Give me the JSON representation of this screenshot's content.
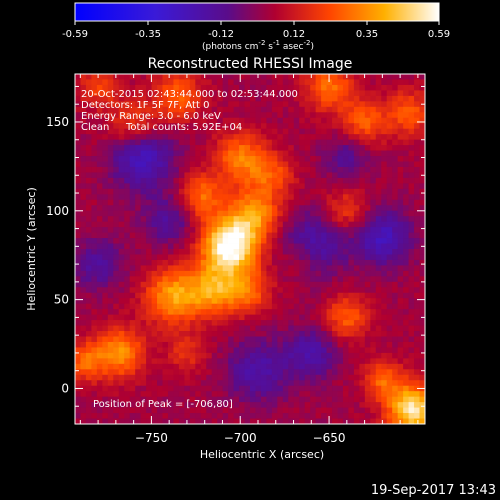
{
  "colorbar": {
    "ticks": [
      "-0.59",
      "-0.35",
      "-0.12",
      "0.12",
      "0.35",
      "0.59"
    ],
    "units_main": "(photons cm",
    "units_exp1": "-2",
    "units_mid": " s",
    "units_exp2": "-1",
    "units_end": " asec",
    "units_exp3": "-2",
    "units_close": ")",
    "min": -0.59,
    "max": 0.59
  },
  "chart_data": {
    "type": "heatmap",
    "title": "Reconstructed RHESSI Image",
    "xlabel": "Heliocentric X (arcsec)",
    "ylabel": "Heliocentric Y (arcsec)",
    "xlim": [
      -793,
      -596
    ],
    "ylim": [
      -20,
      177
    ],
    "xticks": [
      -750,
      -700,
      -650
    ],
    "xtick_labels": [
      "−750",
      "−700",
      "−650"
    ],
    "yticks": [
      0,
      50,
      100,
      150
    ],
    "ytick_labels": [
      "0",
      "50",
      "100",
      "150"
    ],
    "colormap": "blue-purple-red-yellow-white",
    "value_range": [
      -0.59,
      0.59
    ],
    "peak": [
      -706,
      80
    ],
    "sources": [
      {
        "x": -706,
        "y": 80,
        "amp": 1.0,
        "sigma": 11
      },
      {
        "x": -692,
        "y": 98,
        "amp": 0.55,
        "sigma": 10
      },
      {
        "x": -722,
        "y": 108,
        "amp": 0.45,
        "sigma": 9
      },
      {
        "x": -700,
        "y": 130,
        "amp": 0.5,
        "sigma": 10
      },
      {
        "x": -682,
        "y": 120,
        "amp": 0.35,
        "sigma": 9
      },
      {
        "x": -738,
        "y": 52,
        "amp": 0.6,
        "sigma": 11
      },
      {
        "x": -715,
        "y": 55,
        "amp": 0.55,
        "sigma": 10
      },
      {
        "x": -695,
        "y": 55,
        "amp": 0.4,
        "sigma": 9
      },
      {
        "x": -768,
        "y": 20,
        "amp": 0.55,
        "sigma": 10
      },
      {
        "x": -788,
        "y": 15,
        "amp": 0.4,
        "sigma": 8
      },
      {
        "x": -735,
        "y": 165,
        "amp": 0.4,
        "sigma": 10
      },
      {
        "x": -760,
        "y": 148,
        "amp": 0.35,
        "sigma": 10
      },
      {
        "x": -780,
        "y": 170,
        "amp": 0.3,
        "sigma": 9
      },
      {
        "x": -650,
        "y": 170,
        "amp": 0.45,
        "sigma": 10
      },
      {
        "x": -630,
        "y": 150,
        "amp": 0.4,
        "sigma": 9
      },
      {
        "x": -605,
        "y": 155,
        "amp": 0.4,
        "sigma": 9
      },
      {
        "x": -640,
        "y": 100,
        "amp": 0.3,
        "sigma": 9
      },
      {
        "x": -665,
        "y": 75,
        "amp": 0.3,
        "sigma": 9
      },
      {
        "x": -640,
        "y": 40,
        "amp": 0.4,
        "sigma": 9
      },
      {
        "x": -603,
        "y": -12,
        "amp": 0.85,
        "sigma": 10
      },
      {
        "x": -620,
        "y": 5,
        "amp": 0.4,
        "sigma": 8
      },
      {
        "x": -730,
        "y": 20,
        "amp": 0.25,
        "sigma": 8
      }
    ],
    "sinks": [
      {
        "x": -660,
        "y": 80,
        "amp": 0.5,
        "sigma": 12
      },
      {
        "x": -620,
        "y": 85,
        "amp": 0.45,
        "sigma": 11
      },
      {
        "x": -755,
        "y": 130,
        "amp": 0.5,
        "sigma": 12
      },
      {
        "x": -740,
        "y": 95,
        "amp": 0.3,
        "sigma": 10
      },
      {
        "x": -690,
        "y": 10,
        "amp": 0.35,
        "sigma": 12
      },
      {
        "x": -780,
        "y": 70,
        "amp": 0.3,
        "sigma": 10
      },
      {
        "x": -660,
        "y": 20,
        "amp": 0.35,
        "sigma": 10
      },
      {
        "x": -640,
        "y": 130,
        "amp": 0.25,
        "sigma": 9
      }
    ]
  },
  "annotations": {
    "line1": "20-Oct-2015 02:43:44.000 to 02:53:44.000",
    "line2": "Detectors: 1F 5F 7F, Att 0",
    "line3": "Energy Range: 3.0 - 6.0 keV",
    "line4_a": "Clean",
    "line4_b": "Total counts: 5.92E+04",
    "peak_text": "Position of Peak = [-706,80]"
  },
  "footer": {
    "timestamp": "19-Sep-2017 13:43"
  }
}
